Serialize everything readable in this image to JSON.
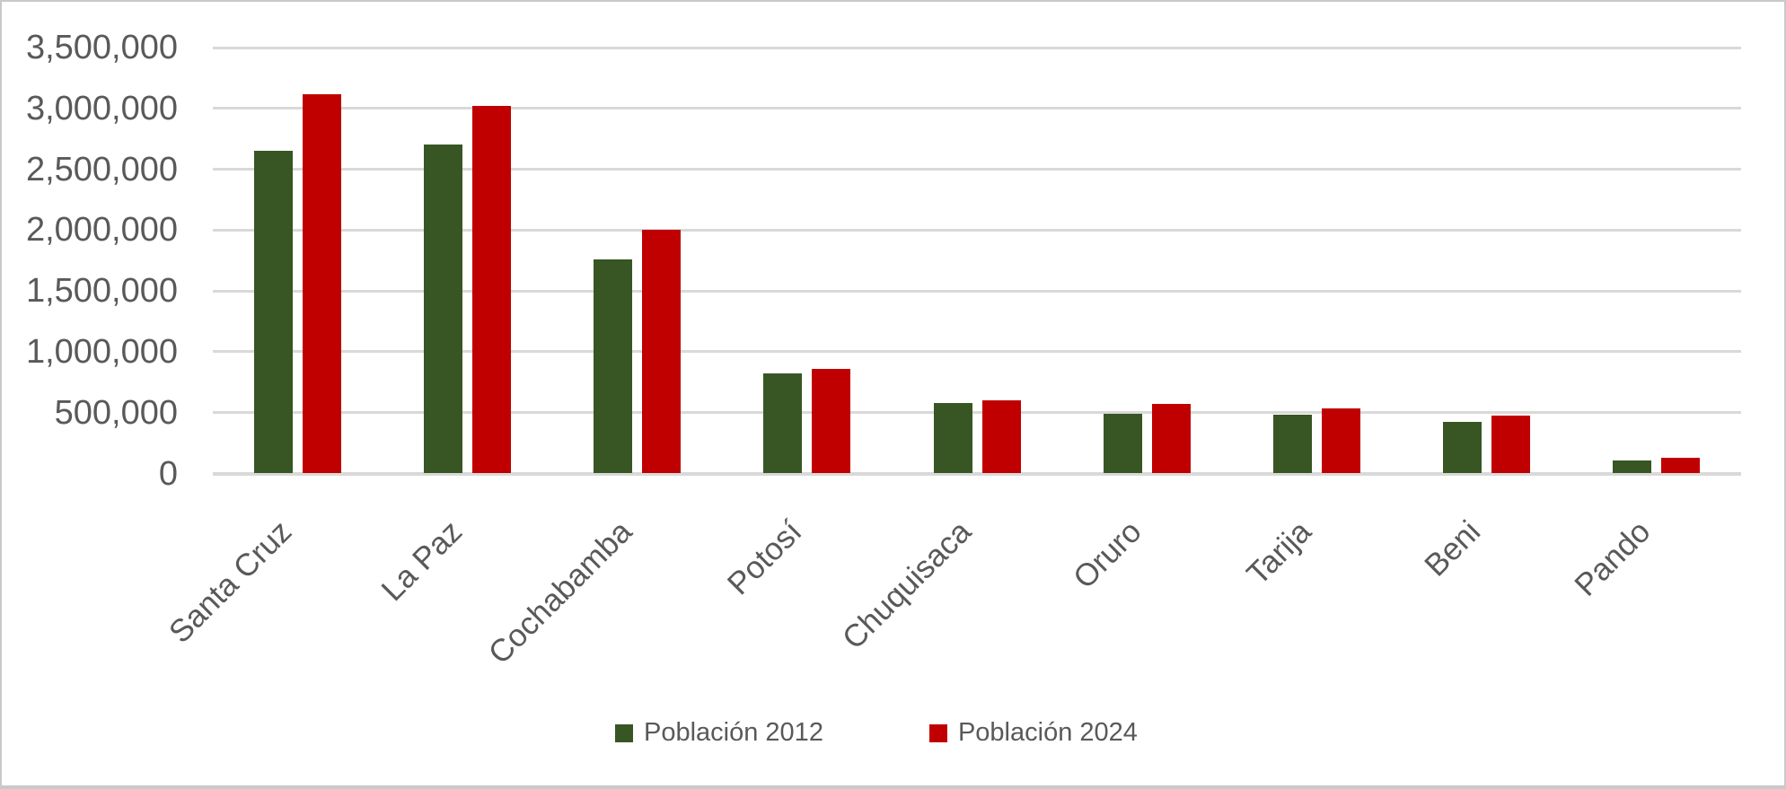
{
  "chart_data": {
    "type": "bar",
    "title": "",
    "xlabel": "",
    "ylabel": "",
    "categories": [
      "Santa Cruz",
      "La Paz",
      "Cochabamba",
      "Potosí",
      "Chuquisaca",
      "Oruro",
      "Tarija",
      "Beni",
      "Pando"
    ],
    "series": [
      {
        "name": "Población 2012",
        "color": "#375623",
        "values": [
          2655084,
          2706351,
          1758143,
          823517,
          576153,
          494178,
          482196,
          421196,
          110436
        ]
      },
      {
        "name": "Población 2024",
        "color": "#C00000",
        "values": [
          3115386,
          3022566,
          2005373,
          856419,
          600132,
          570194,
          534687,
          477441,
          130422
        ]
      }
    ],
    "ylim": [
      0,
      3500000
    ],
    "ytick_step": 500000,
    "ytick_labels": [
      "0",
      "500,000",
      "1,000,000",
      "1,500,000",
      "2,000,000",
      "2,500,000",
      "3,000,000",
      "3,500,000"
    ],
    "xtick_rotation_degrees": 45,
    "grid": "horizontal",
    "legend_position": "bottom"
  },
  "styles": {
    "text_color": "#595959",
    "gridline_color": "#D9D9D9",
    "axis_line_color": "#D9D9D9",
    "background_color": "#FFFFFF",
    "border_color": "#C9C9C9"
  }
}
